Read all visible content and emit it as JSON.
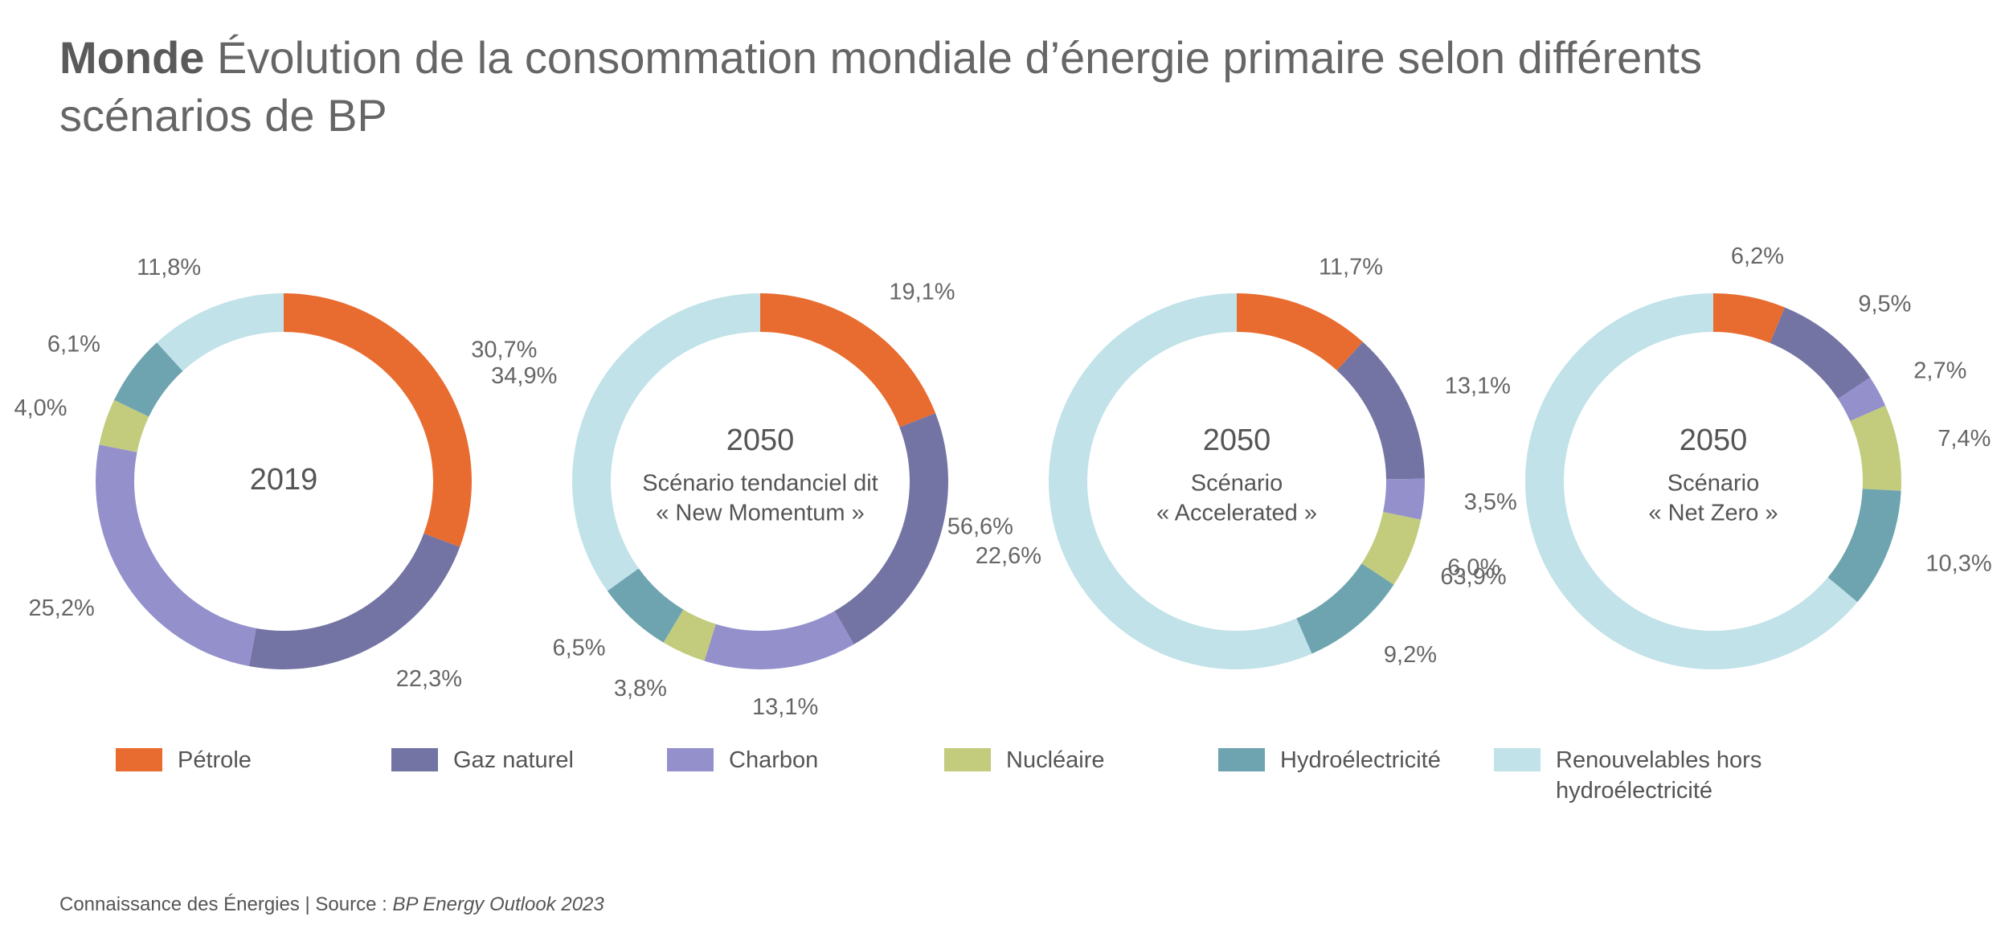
{
  "header": {
    "title_bold": "Monde",
    "title": "Évolution de la consommation mondiale d’énergie primaire selon différents scénarios de BP"
  },
  "chart_data": [
    {
      "type": "pie",
      "title": "2019",
      "subtitle": [],
      "categories": [
        "Pétrole",
        "Gaz naturel",
        "Charbon",
        "Nucléaire",
        "Hydroélectricité",
        "Renouvelables hors hydroélectricité"
      ],
      "colors": [
        "#e86c30",
        "#7474a4",
        "#9490cc",
        "#c2cc7c",
        "#6ea4b0",
        "#c0e2e8"
      ],
      "values": [
        30.7,
        22.3,
        25.2,
        4.0,
        6.1,
        11.8
      ],
      "value_labels": [
        "30,7%",
        "22,3%",
        "25,2%",
        "4,0%",
        "6,1%",
        "11,8%"
      ]
    },
    {
      "type": "pie",
      "title": "2050",
      "subtitle": [
        "Scénario tendanciel dit",
        "« New Momentum »"
      ],
      "categories": [
        "Pétrole",
        "Gaz naturel",
        "Charbon",
        "Nucléaire",
        "Hydroélectricité",
        "Renouvelables hors hydroélectricité"
      ],
      "colors": [
        "#e86c30",
        "#7474a4",
        "#9490cc",
        "#c2cc7c",
        "#6ea4b0",
        "#c0e2e8"
      ],
      "values": [
        19.1,
        22.6,
        13.1,
        3.8,
        6.5,
        34.9
      ],
      "value_labels": [
        "19,1%",
        "22,6%",
        "13,1%",
        "3,8%",
        "6,5%",
        "34,9%"
      ]
    },
    {
      "type": "pie",
      "title": "2050",
      "subtitle": [
        "Scénario",
        "« Accelerated »"
      ],
      "categories": [
        "Pétrole",
        "Gaz naturel",
        "Charbon",
        "Nucléaire",
        "Hydroélectricité",
        "Renouvelables hors hydroélectricité"
      ],
      "colors": [
        "#e86c30",
        "#7474a4",
        "#9490cc",
        "#c2cc7c",
        "#6ea4b0",
        "#c0e2e8"
      ],
      "values": [
        11.7,
        13.1,
        3.5,
        6.0,
        9.2,
        56.6
      ],
      "value_labels": [
        "11,7%",
        "13,1%",
        "3,5%",
        "6,0%",
        "9,2%",
        "56,6%"
      ]
    },
    {
      "type": "pie",
      "title": "2050",
      "subtitle": [
        "Scénario",
        "« Net Zero »"
      ],
      "categories": [
        "Pétrole",
        "Gaz naturel",
        "Charbon",
        "Nucléaire",
        "Hydroélectricité",
        "Renouvelables hors hydroélectricité"
      ],
      "colors": [
        "#e86c30",
        "#7474a4",
        "#9490cc",
        "#c2cc7c",
        "#6ea4b0",
        "#c0e2e8"
      ],
      "values": [
        6.2,
        9.5,
        2.7,
        7.4,
        10.3,
        63.9
      ],
      "value_labels": [
        "6,2%",
        "9,5%",
        "2,7%",
        "7,4%",
        "10,3%",
        "63,9%"
      ]
    }
  ],
  "source": {
    "text": "Connaissance des Énergies | Source : ",
    "italic": "BP Energy Outlook 2023"
  }
}
